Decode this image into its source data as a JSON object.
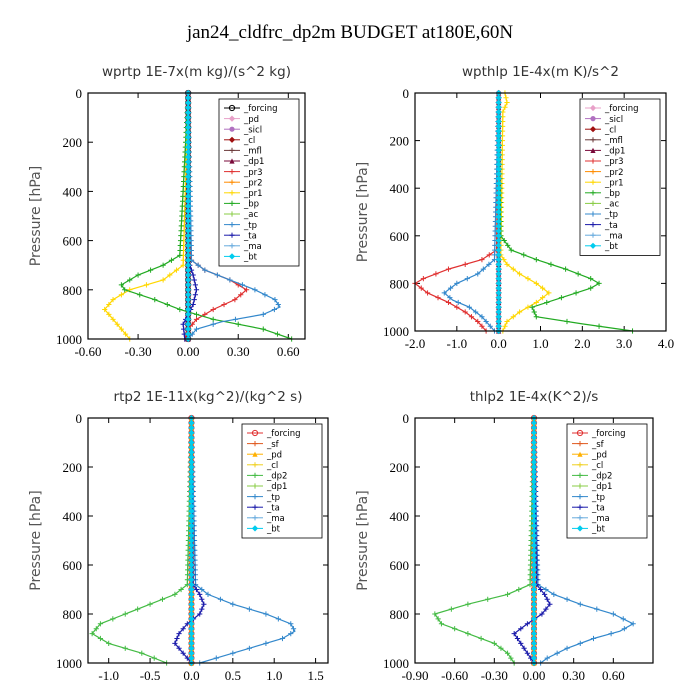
{
  "figure": {
    "title": "jan24_cldfrc_dp2m  BUDGET at180E,60N"
  },
  "chart_data": [
    {
      "type": "line",
      "title": "wprtp   1E-7x(m kg)/(s^2 kg)",
      "ylabel": "Pressure [hPa]",
      "xlim": [
        -0.6,
        0.7
      ],
      "ylim": [
        1000,
        0
      ],
      "xticks": [
        -0.6,
        -0.3,
        0.0,
        0.3,
        0.6
      ],
      "xtick_labels": [
        "-0.60",
        "-0.30",
        "0.00",
        "0.30",
        "0.60"
      ],
      "yticks": [
        0,
        200,
        400,
        600,
        800,
        1000
      ],
      "ytick_labels": [
        "0",
        "200",
        "400",
        "600",
        "800",
        "1000"
      ],
      "grid": false,
      "legend_position": "top-right",
      "series": [
        {
          "name": "_forcing",
          "color": "#000000",
          "marker": "circle-open",
          "p": [
            0,
            1000
          ],
          "v": [
            0,
            0
          ]
        },
        {
          "name": "_pd",
          "color": "#e8a0c8",
          "marker": "diamond",
          "p": [
            0,
            1000
          ],
          "v": [
            0,
            0
          ]
        },
        {
          "name": "_sicl",
          "color": "#b070c0",
          "marker": "circle",
          "p": [
            0,
            1000
          ],
          "v": [
            0,
            0
          ]
        },
        {
          "name": "_cl",
          "color": "#a01010",
          "marker": "diamond",
          "p": [
            0,
            1000
          ],
          "v": [
            0,
            0
          ]
        },
        {
          "name": "_mfl",
          "color": "#6b3a3a",
          "marker": "cross",
          "p": [
            0,
            1000
          ],
          "v": [
            0,
            0
          ]
        },
        {
          "name": "_dp1",
          "color": "#7a0a3a",
          "marker": "triangle",
          "p": [
            0,
            1000
          ],
          "v": [
            0,
            0
          ]
        },
        {
          "name": "_pr3",
          "color": "#e03030",
          "marker": "cross",
          "p": [
            0,
            600,
            680,
            720,
            760,
            800,
            840,
            880,
            920,
            960,
            1000
          ],
          "v": [
            0,
            0,
            0.02,
            0.1,
            0.25,
            0.35,
            0.28,
            0.15,
            0.05,
            0.0,
            -0.02
          ]
        },
        {
          "name": "_pr2",
          "color": "#ff8c00",
          "marker": "cross",
          "p": [
            0,
            1000
          ],
          "v": [
            0,
            0
          ]
        },
        {
          "name": "_pr1",
          "color": "#ffd700",
          "marker": "cross",
          "p": [
            0,
            700,
            760,
            800,
            840,
            880,
            920,
            960,
            1000
          ],
          "v": [
            0,
            -0.03,
            -0.15,
            -0.35,
            -0.45,
            -0.5,
            -0.45,
            -0.4,
            -0.35
          ]
        },
        {
          "name": "_bp",
          "color": "#22aa22",
          "marker": "cross",
          "p": [
            0,
            660,
            700,
            740,
            780,
            800,
            840,
            880,
            920,
            960,
            1000
          ],
          "v": [
            0,
            -0.05,
            -0.15,
            -0.3,
            -0.4,
            -0.38,
            -0.2,
            -0.05,
            0.15,
            0.45,
            0.62
          ]
        },
        {
          "name": "_ac",
          "color": "#88cc44",
          "marker": "cross",
          "p": [
            0,
            1000
          ],
          "v": [
            0,
            0
          ]
        },
        {
          "name": "_tp",
          "color": "#3388cc",
          "marker": "cross",
          "p": [
            0,
            680,
            720,
            760,
            800,
            840,
            870,
            900,
            930,
            960,
            1000
          ],
          "v": [
            0,
            0.02,
            0.1,
            0.25,
            0.4,
            0.52,
            0.55,
            0.45,
            0.2,
            0.05,
            0.0
          ]
        },
        {
          "name": "_ta",
          "color": "#1a1aaa",
          "marker": "cross",
          "p": [
            0,
            680,
            740,
            800,
            860,
            900,
            940,
            1000
          ],
          "v": [
            0,
            0,
            0.03,
            0.05,
            0.03,
            0.0,
            -0.03,
            -0.02
          ]
        },
        {
          "name": "_ma",
          "color": "#66aadd",
          "marker": "cross",
          "p": [
            0,
            1000
          ],
          "v": [
            0,
            0
          ]
        },
        {
          "name": "_bt",
          "color": "#00ccee",
          "marker": "diamond",
          "p": [
            0,
            1000
          ],
          "v": [
            0,
            0
          ]
        }
      ]
    },
    {
      "type": "line",
      "title": "wpthlp   1E-4x(m K)/s^2",
      "ylabel": "Pressure [hPa]",
      "xlim": [
        -2.0,
        4.0
      ],
      "ylim": [
        1000,
        0
      ],
      "xticks": [
        -2,
        -1,
        0,
        1,
        2,
        3,
        4
      ],
      "xtick_labels": [
        "-2.0",
        "-1.0",
        "0.0",
        "1.0",
        "2.0",
        "3.0",
        "4.0"
      ],
      "yticks": [
        0,
        200,
        400,
        600,
        800,
        1000
      ],
      "ytick_labels": [
        "0",
        "200",
        "400",
        "600",
        "800",
        "1000"
      ],
      "grid": false,
      "legend_position": "top-right",
      "series": [
        {
          "name": "_forcing",
          "color": "#e8a0c8",
          "marker": "diamond",
          "p": [
            0,
            1000
          ],
          "v": [
            0,
            0
          ]
        },
        {
          "name": "_sicl",
          "color": "#b070c0",
          "marker": "circle",
          "p": [
            0,
            1000
          ],
          "v": [
            0,
            0
          ]
        },
        {
          "name": "_cl",
          "color": "#a01010",
          "marker": "diamond",
          "p": [
            0,
            1000
          ],
          "v": [
            0,
            0
          ]
        },
        {
          "name": "_mfl",
          "color": "#6b3a3a",
          "marker": "cross",
          "p": [
            0,
            1000
          ],
          "v": [
            0,
            0
          ]
        },
        {
          "name": "_dp1",
          "color": "#7a0a3a",
          "marker": "triangle",
          "p": [
            0,
            1000
          ],
          "v": [
            0,
            0
          ]
        },
        {
          "name": "_pr3",
          "color": "#e03030",
          "marker": "cross",
          "p": [
            0,
            660,
            700,
            740,
            780,
            800,
            840,
            880,
            920,
            960,
            1000
          ],
          "v": [
            0,
            -0.05,
            -0.4,
            -1.2,
            -1.8,
            -2.0,
            -1.7,
            -1.2,
            -0.8,
            -0.5,
            -0.3
          ]
        },
        {
          "name": "_pr2",
          "color": "#ff8c00",
          "marker": "cross",
          "p": [
            0,
            1000
          ],
          "v": [
            0,
            0
          ]
        },
        {
          "name": "_pr1",
          "color": "#ffd700",
          "marker": "cross",
          "p": [
            0,
            40,
            80,
            680,
            720,
            760,
            800,
            840,
            880,
            920,
            960,
            1000
          ],
          "v": [
            0.15,
            0.2,
            0.1,
            0.05,
            0.2,
            0.5,
            0.9,
            1.2,
            0.9,
            0.5,
            0.2,
            0.1
          ]
        },
        {
          "name": "_bp",
          "color": "#22aa22",
          "marker": "cross",
          "p": [
            0,
            600,
            660,
            700,
            740,
            780,
            800,
            820,
            860,
            900,
            940,
            970,
            1000
          ],
          "v": [
            0,
            0.05,
            0.3,
            0.9,
            1.6,
            2.2,
            2.4,
            2.2,
            1.5,
            0.8,
            0.9,
            2.0,
            3.2
          ]
        },
        {
          "name": "_ac",
          "color": "#88cc44",
          "marker": "cross",
          "p": [
            0,
            1000
          ],
          "v": [
            0,
            0
          ]
        },
        {
          "name": "_tp",
          "color": "#3388cc",
          "marker": "cross",
          "p": [
            0,
            700,
            760,
            800,
            840,
            870,
            900,
            940,
            980,
            1000
          ],
          "v": [
            0,
            -0.1,
            -0.5,
            -1.0,
            -1.3,
            -1.1,
            -0.7,
            -0.4,
            -0.2,
            -0.1
          ]
        },
        {
          "name": "_ta",
          "color": "#1a1aaa",
          "marker": "cross",
          "p": [
            0,
            1000
          ],
          "v": [
            0,
            0
          ]
        },
        {
          "name": "_ma",
          "color": "#66aadd",
          "marker": "cross",
          "p": [
            0,
            1000
          ],
          "v": [
            0,
            0
          ]
        },
        {
          "name": "_bt",
          "color": "#00ccee",
          "marker": "diamond",
          "p": [
            0,
            1000
          ],
          "v": [
            0,
            0
          ]
        }
      ]
    },
    {
      "type": "line",
      "title": "rtp2   1E-11x(kg^2)/(kg^2 s)",
      "ylabel": "Pressure [hPa]",
      "xlim": [
        -1.25,
        1.65
      ],
      "ylim": [
        1000,
        0
      ],
      "xticks": [
        -1.0,
        -0.5,
        0.0,
        0.5,
        1.0,
        1.5
      ],
      "xtick_labels": [
        "-1.0",
        "-0.5",
        "0.0",
        "0.5",
        "1.0",
        "1.5"
      ],
      "yticks": [
        0,
        200,
        400,
        600,
        800,
        1000
      ],
      "ytick_labels": [
        "0",
        "200",
        "400",
        "600",
        "800",
        "1000"
      ],
      "grid": false,
      "legend_position": "top-right",
      "series": [
        {
          "name": "_forcing",
          "color": "#e03030",
          "marker": "circle-open",
          "p": [
            0,
            1000
          ],
          "v": [
            0,
            0
          ]
        },
        {
          "name": "_sf",
          "color": "#e05a20",
          "marker": "cross",
          "p": [
            0,
            1000
          ],
          "v": [
            0,
            0
          ]
        },
        {
          "name": "_pd",
          "color": "#ffb000",
          "marker": "triangle",
          "p": [
            0,
            1000
          ],
          "v": [
            0,
            0
          ]
        },
        {
          "name": "_cl",
          "color": "#f0d020",
          "marker": "cross",
          "p": [
            0,
            1000
          ],
          "v": [
            0,
            0
          ]
        },
        {
          "name": "_dp2",
          "color": "#44bb44",
          "marker": "cross",
          "p": [
            0,
            680,
            720,
            760,
            800,
            840,
            880,
            920,
            960,
            1000
          ],
          "v": [
            0,
            -0.05,
            -0.2,
            -0.5,
            -0.8,
            -1.1,
            -1.2,
            -1.0,
            -0.6,
            -0.3
          ]
        },
        {
          "name": "_dp1",
          "color": "#88cc44",
          "marker": "cross",
          "p": [
            0,
            1000
          ],
          "v": [
            0,
            0
          ]
        },
        {
          "name": "_tp",
          "color": "#3388cc",
          "marker": "cross",
          "p": [
            0,
            680,
            720,
            760,
            800,
            840,
            870,
            900,
            940,
            980,
            1000
          ],
          "v": [
            0,
            0.05,
            0.2,
            0.5,
            0.9,
            1.2,
            1.25,
            1.1,
            0.7,
            0.3,
            0.1
          ]
        },
        {
          "name": "_ta",
          "color": "#1a1aaa",
          "marker": "cross",
          "p": [
            0,
            680,
            720,
            760,
            800,
            840,
            880,
            920,
            960,
            1000
          ],
          "v": [
            0,
            0.02,
            0.1,
            0.15,
            0.1,
            -0.05,
            -0.15,
            -0.2,
            -0.1,
            0.0
          ]
        },
        {
          "name": "_ma",
          "color": "#66aadd",
          "marker": "cross",
          "p": [
            0,
            1000
          ],
          "v": [
            0,
            0
          ]
        },
        {
          "name": "_bt",
          "color": "#00ccee",
          "marker": "diamond",
          "p": [
            0,
            1000
          ],
          "v": [
            0,
            0
          ]
        }
      ]
    },
    {
      "type": "line",
      "title": "thlp2   1E-4x(K^2)/s",
      "ylabel": "Pressure [hPa]",
      "xlim": [
        -0.9,
        0.9
      ],
      "ylim": [
        1000,
        0
      ],
      "xticks": [
        -0.9,
        -0.6,
        -0.3,
        0.0,
        0.3,
        0.6
      ],
      "xtick_labels": [
        "-0.90",
        "-0.60",
        "-0.30",
        "0.00",
        "0.30",
        "0.60"
      ],
      "yticks": [
        0,
        200,
        400,
        600,
        800,
        1000
      ],
      "ytick_labels": [
        "0",
        "200",
        "400",
        "600",
        "800",
        "1000"
      ],
      "grid": false,
      "legend_position": "top-right",
      "series": [
        {
          "name": "_forcing",
          "color": "#e03030",
          "marker": "circle-open",
          "p": [
            0,
            1000
          ],
          "v": [
            0,
            0
          ]
        },
        {
          "name": "_sf",
          "color": "#e05a20",
          "marker": "cross",
          "p": [
            0,
            1000
          ],
          "v": [
            0,
            0
          ]
        },
        {
          "name": "_pd",
          "color": "#ffb000",
          "marker": "triangle",
          "p": [
            0,
            1000
          ],
          "v": [
            0,
            0
          ]
        },
        {
          "name": "_cl",
          "color": "#f0d020",
          "marker": "cross",
          "p": [
            0,
            1000
          ],
          "v": [
            0,
            0
          ]
        },
        {
          "name": "_dp2",
          "color": "#44bb44",
          "marker": "cross",
          "p": [
            0,
            680,
            720,
            760,
            800,
            840,
            880,
            920,
            960,
            1000
          ],
          "v": [
            0,
            -0.03,
            -0.2,
            -0.5,
            -0.75,
            -0.7,
            -0.5,
            -0.3,
            -0.2,
            -0.15
          ]
        },
        {
          "name": "_dp1",
          "color": "#88cc44",
          "marker": "cross",
          "p": [
            0,
            1000
          ],
          "v": [
            0,
            0
          ]
        },
        {
          "name": "_tp",
          "color": "#3388cc",
          "marker": "cross",
          "p": [
            0,
            680,
            720,
            760,
            800,
            840,
            870,
            900,
            940,
            980,
            1000
          ],
          "v": [
            0,
            0.03,
            0.15,
            0.35,
            0.6,
            0.75,
            0.65,
            0.45,
            0.25,
            0.1,
            0.05
          ]
        },
        {
          "name": "_ta",
          "color": "#1a1aaa",
          "marker": "cross",
          "p": [
            0,
            680,
            720,
            760,
            800,
            840,
            880,
            920,
            960,
            1000
          ],
          "v": [
            0,
            0.02,
            0.08,
            0.12,
            0.06,
            -0.05,
            -0.15,
            -0.1,
            -0.05,
            0.0
          ]
        },
        {
          "name": "_ma",
          "color": "#66aadd",
          "marker": "cross",
          "p": [
            0,
            1000
          ],
          "v": [
            0,
            0
          ]
        },
        {
          "name": "_bt",
          "color": "#00ccee",
          "marker": "diamond",
          "p": [
            0,
            1000
          ],
          "v": [
            0,
            0
          ]
        }
      ]
    }
  ]
}
